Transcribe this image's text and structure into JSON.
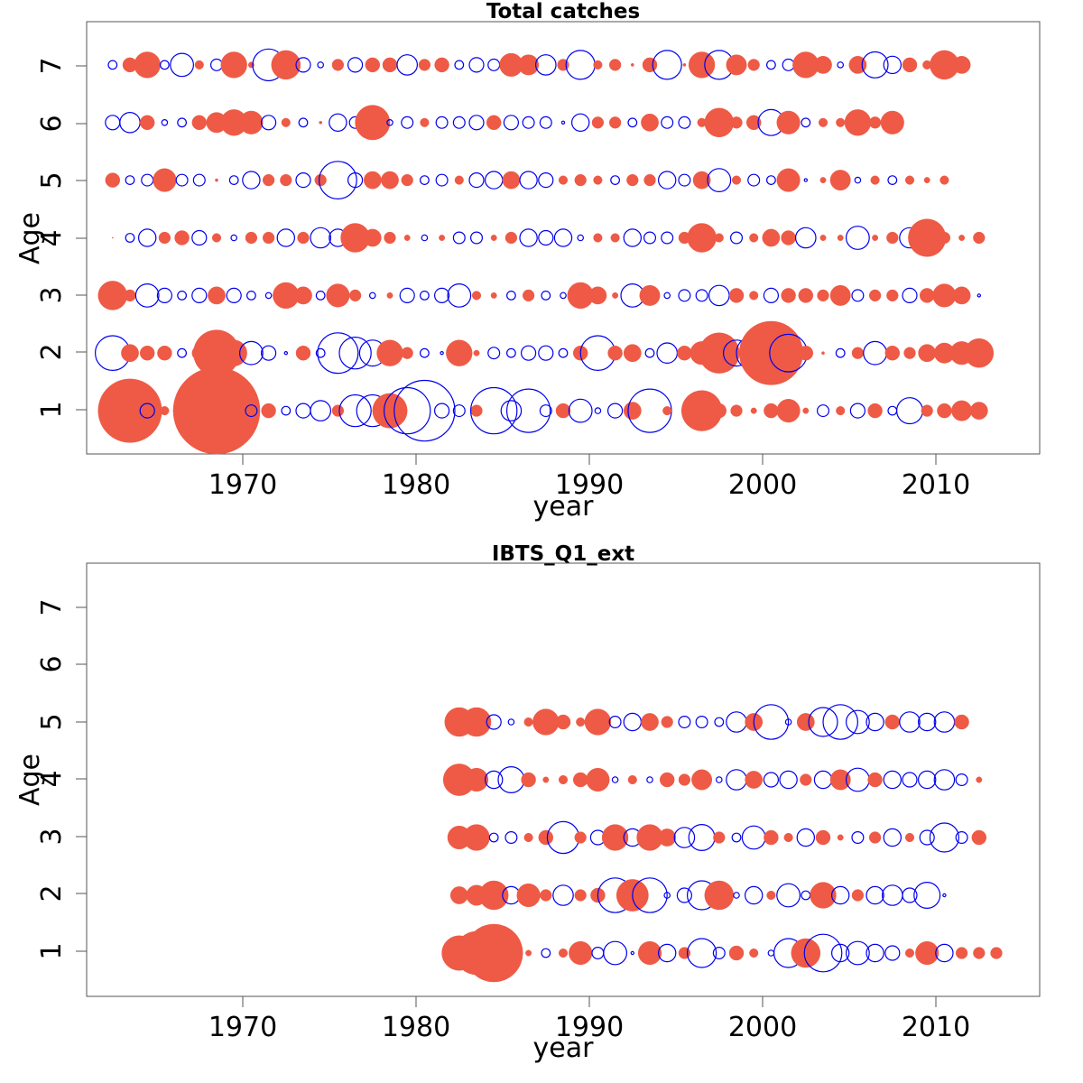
{
  "colors": {
    "positive": "#EE5A45",
    "negative": "#0000EE"
  },
  "chart_data": [
    {
      "type": "scatter",
      "encoding": "bubble residual plot; filled bubble = positive residual, open bubble = negative residual; bubble size proportional to |residual|",
      "title": "Total catches",
      "xlabel": "year",
      "ylabel": "Age",
      "x_ticks": [
        1970,
        1980,
        1990,
        2000,
        2010
      ],
      "y_ticks": [
        1,
        2,
        3,
        4,
        5,
        6,
        7
      ],
      "xlim": [
        1961.5,
        2016.5
      ],
      "ylim": [
        0.25,
        7.75
      ],
      "years": [
        1963,
        2013
      ],
      "points": {
        "1": [
          0.8,
          2.2,
          -0.5,
          0.3,
          0.6,
          1.3,
          3.0,
          0.5,
          -0.4,
          0.5,
          -0.3,
          -0.5,
          -0.7,
          0.4,
          -1.1,
          -1.1,
          1.2,
          -1.6,
          -2.1,
          -0.5,
          -0.4,
          0.4,
          -1.6,
          -0.7,
          -1.5,
          -0.4,
          0.5,
          -0.8,
          -0.2,
          -0.5,
          0.6,
          -1.5,
          0.3,
          0.2,
          1.4,
          0.5,
          0.4,
          0.2,
          0.5,
          0.8,
          0.2,
          -0.4,
          0.3,
          -0.5,
          0.5,
          -0.3,
          -0.9,
          0.4,
          0.5,
          0.7,
          0.6
        ],
        "2": [
          -1.2,
          0.6,
          0.5,
          0.5,
          -0.3,
          0.5,
          1.6,
          0.9,
          -0.8,
          -0.5,
          -0.1,
          0.5,
          -0.3,
          -1.4,
          -1.1,
          -0.9,
          0.9,
          0.4,
          -0.3,
          -0.1,
          0.9,
          0.2,
          -0.4,
          -0.3,
          -0.5,
          -0.5,
          -0.3,
          0.5,
          -1.2,
          0.5,
          0.6,
          -0.3,
          -0.7,
          0.5,
          0.8,
          1.4,
          -0.9,
          -1.2,
          2.2,
          -1.3,
          0.5,
          0.1,
          -0.3,
          0.4,
          -0.8,
          0.5,
          0.4,
          0.6,
          0.7,
          0.8,
          1.0
        ],
        "3": [
          1.0,
          0.4,
          -0.8,
          -0.5,
          -0.3,
          -0.5,
          0.6,
          -0.5,
          -0.3,
          -0.2,
          0.9,
          0.6,
          -0.3,
          0.8,
          0.4,
          -0.2,
          0.2,
          -0.5,
          -0.3,
          -0.5,
          -0.8,
          0.3,
          0.2,
          -0.3,
          0.4,
          -0.3,
          -0.2,
          0.9,
          0.6,
          0.2,
          -0.8,
          0.7,
          -0.2,
          -0.4,
          -0.4,
          -0.7,
          0.5,
          0.3,
          -0.5,
          0.5,
          0.5,
          0.4,
          0.7,
          -0.4,
          0.4,
          0.4,
          -0.5,
          0.5,
          0.8,
          0.6,
          -0.1
        ],
        "4": [
          0.02,
          -0.3,
          -0.6,
          0.4,
          0.5,
          -0.5,
          0.3,
          -0.2,
          0.4,
          0.4,
          -0.6,
          0.4,
          -0.7,
          -0.6,
          1.0,
          0.6,
          0.4,
          0.2,
          -0.2,
          0.2,
          -0.4,
          -0.4,
          0.2,
          0.4,
          -0.6,
          -0.5,
          -0.6,
          -0.2,
          0.3,
          0.3,
          -0.6,
          -0.4,
          -0.4,
          0.4,
          1.0,
          0.3,
          -0.4,
          0.3,
          0.6,
          0.5,
          -0.7,
          0.2,
          0.2,
          -0.8,
          0.2,
          0.4,
          -0.7,
          1.3,
          0.4,
          0.2,
          0.4
        ],
        "5": [
          0.5,
          -0.3,
          -0.4,
          0.8,
          -0.4,
          -0.4,
          0.1,
          -0.3,
          -0.6,
          0.4,
          0.4,
          -0.5,
          0.4,
          -1.3,
          -0.5,
          0.6,
          0.6,
          0.4,
          -0.3,
          -0.4,
          0.3,
          -0.5,
          -0.6,
          0.6,
          -0.6,
          -0.5,
          0.3,
          0.4,
          0.3,
          -0.3,
          0.4,
          0.4,
          -0.6,
          -0.4,
          0.6,
          -0.8,
          0.3,
          -0.4,
          -0.3,
          0.8,
          -0.1,
          0.2,
          0.7,
          -0.2,
          0.3,
          -0.3,
          0.3,
          0.2,
          0.3
        ],
        "6": [
          -0.5,
          -0.7,
          0.5,
          -0.2,
          -0.3,
          0.5,
          0.7,
          0.9,
          0.8,
          -0.5,
          0.3,
          -0.3,
          0.1,
          -0.6,
          -0.4,
          1.2,
          -0.2,
          -0.4,
          0.3,
          -0.4,
          -0.4,
          -0.5,
          0.5,
          -0.5,
          -0.4,
          -0.4,
          -0.1,
          -0.6,
          0.4,
          0.4,
          -0.3,
          0.6,
          -0.4,
          -0.4,
          0.3,
          1.0,
          0.4,
          0.5,
          -0.9,
          0.8,
          -0.3,
          0.3,
          0.3,
          0.9,
          0.4,
          0.8
        ],
        "7": [
          -0.3,
          0.5,
          0.9,
          -0.3,
          -0.8,
          0.3,
          -0.4,
          0.9,
          0.2,
          -1.1,
          1.0,
          -0.5,
          -0.2,
          0.4,
          -0.5,
          0.5,
          0.5,
          -0.7,
          0.4,
          0.5,
          -0.3,
          -0.5,
          -0.4,
          0.8,
          0.7,
          -0.7,
          0.4,
          -1.0,
          0.3,
          0.4,
          0.1,
          0.5,
          -1.0,
          0.1,
          0.9,
          -1.0,
          0.7,
          0.4,
          -0.3,
          -0.4,
          0.9,
          0.6,
          -0.2,
          0.6,
          -0.9,
          -0.6,
          0.5,
          0.3,
          1.0,
          0.6
        ]
      }
    },
    {
      "type": "scatter",
      "encoding": "bubble residual plot; filled bubble = positive residual, open bubble = negative residual; bubble size proportional to |residual|",
      "title": "IBTS_Q1_ext",
      "xlabel": "year",
      "ylabel": "Age",
      "x_ticks": [
        1970,
        1980,
        1990,
        2000,
        2010
      ],
      "y_ticks": [
        1,
        2,
        3,
        4,
        5,
        6,
        7
      ],
      "xlim": [
        1961.5,
        2016.5
      ],
      "ylim": [
        0.25,
        7.75
      ],
      "years": [
        1983,
        2014
      ],
      "points": {
        "1": [
          1.2,
          1.5,
          2.0,
          0.4,
          0.2,
          -0.3,
          0.3,
          0.8,
          -0.4,
          -0.8,
          -0.1,
          0.8,
          -0.6,
          0.4,
          -1.0,
          -0.4,
          0.5,
          0.3,
          -0.2,
          -1.0,
          1.0,
          -1.3,
          -0.6,
          -0.8,
          -0.6,
          -0.5,
          0.3,
          0.8,
          -0.6,
          0.4,
          0.4,
          0.4
        ],
        "2": [
          0.6,
          0.7,
          1.0,
          -0.6,
          0.8,
          0.4,
          -0.7,
          0.4,
          0.5,
          -1.2,
          1.1,
          -1.2,
          -0.2,
          -0.5,
          -1.0,
          1.0,
          -0.2,
          -0.6,
          0.3,
          -0.8,
          -0.3,
          0.9,
          -0.6,
          0.4,
          -0.6,
          -0.7,
          -0.5,
          -0.9,
          -0.1
        ],
        "3": [
          0.8,
          0.9,
          -0.3,
          -0.4,
          0.3,
          0.5,
          -1.1,
          0.4,
          -0.5,
          0.9,
          -0.6,
          0.9,
          0.6,
          -0.7,
          -0.9,
          0.4,
          -0.3,
          -0.8,
          0.5,
          0.3,
          -0.6,
          0.5,
          0.2,
          -0.4,
          0.4,
          -0.6,
          0.3,
          -0.5,
          -1.0,
          -0.4,
          0.5
        ],
        "4": [
          1.1,
          0.8,
          -0.6,
          -0.9,
          0.5,
          0.2,
          0.3,
          0.5,
          0.8,
          -0.2,
          0.3,
          -0.2,
          0.5,
          0.4,
          0.7,
          -0.2,
          -0.7,
          0.6,
          -0.5,
          -0.6,
          0.4,
          -0.6,
          0.7,
          -0.8,
          0.5,
          -0.6,
          -0.5,
          -0.6,
          -0.7,
          -0.4,
          0.2
        ],
        "5": [
          1.0,
          1.0,
          -0.5,
          -0.2,
          0.3,
          0.9,
          0.5,
          0.3,
          0.9,
          -0.4,
          -0.6,
          0.6,
          0.4,
          -0.4,
          -0.4,
          -0.3,
          -0.7,
          0.6,
          -1.2,
          -0.2,
          0.6,
          -1.0,
          -1.2,
          -0.8,
          -0.6,
          0.5,
          -0.7,
          -0.6,
          -0.7,
          0.5
        ]
      }
    }
  ]
}
